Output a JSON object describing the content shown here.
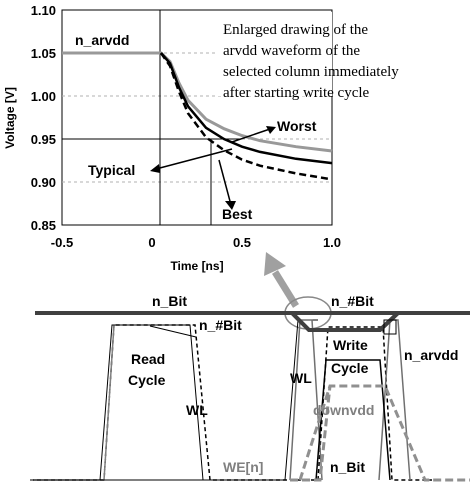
{
  "top_chart": {
    "note_lines": [
      "Enlarged drawing of the",
      "arvdd waveform of the",
      "selected column immediately",
      "after starting write cycle"
    ],
    "y_axis_title": "Voltage [V]",
    "x_axis_title": "Time [ns]",
    "y_ticks": [
      "1.10",
      "1.05",
      "1.00",
      "0.95",
      "0.90",
      "0.85"
    ],
    "x_ticks": [
      "-0.5",
      "0",
      "0.5",
      "1.0"
    ],
    "labels": {
      "n_arvdd": "n_arvdd",
      "worst": "Worst",
      "typical": "Typical",
      "best": "Best"
    }
  },
  "chart_data": {
    "type": "line",
    "title": "",
    "xlabel": "Time [ns]",
    "ylabel": "Voltage [V]",
    "xlim": [
      -0.5,
      1.0
    ],
    "ylim": [
      0.85,
      1.1
    ],
    "grid": true,
    "series": [
      {
        "name": "Worst",
        "color": "#999999",
        "dash": "solid",
        "x": [
          -0.5,
          0.05,
          0.1,
          0.15,
          0.2,
          0.3,
          0.4,
          0.5,
          0.6,
          0.8,
          1.0
        ],
        "y": [
          1.05,
          1.05,
          1.04,
          1.015,
          0.995,
          0.973,
          0.962,
          0.954,
          0.948,
          0.941,
          0.936
        ]
      },
      {
        "name": "Typical",
        "color": "#000000",
        "dash": "solid",
        "x": [
          0.05,
          0.1,
          0.15,
          0.2,
          0.3,
          0.4,
          0.5,
          0.6,
          0.8,
          1.0
        ],
        "y": [
          1.05,
          1.038,
          1.01,
          0.988,
          0.963,
          0.95,
          0.941,
          0.935,
          0.927,
          0.922
        ]
      },
      {
        "name": "Best",
        "color": "#000000",
        "dash": "dashed",
        "x": [
          0.05,
          0.1,
          0.15,
          0.2,
          0.3,
          0.4,
          0.5,
          0.6,
          0.8,
          1.0
        ],
        "y": [
          1.05,
          1.035,
          1.005,
          0.98,
          0.952,
          0.937,
          0.926,
          0.919,
          0.91,
          0.903
        ]
      }
    ]
  },
  "diagram": {
    "labels": {
      "n_bit_top": "n_Bit",
      "n_hash_bit_top": "n_#Bit",
      "n_hash_bit_left": "n_#Bit",
      "n_arvdd_right": "n_arvdd",
      "read_cycle_1": "Read",
      "read_cycle_2": "Cycle",
      "wl_left": "WL",
      "write_cycle_1": "Write",
      "write_cycle_2": "Cycle",
      "wl_right": "WL",
      "downvdd": "downvdd",
      "we_n": "WE[n]",
      "n_bit_bottom": "n_Bit"
    }
  }
}
